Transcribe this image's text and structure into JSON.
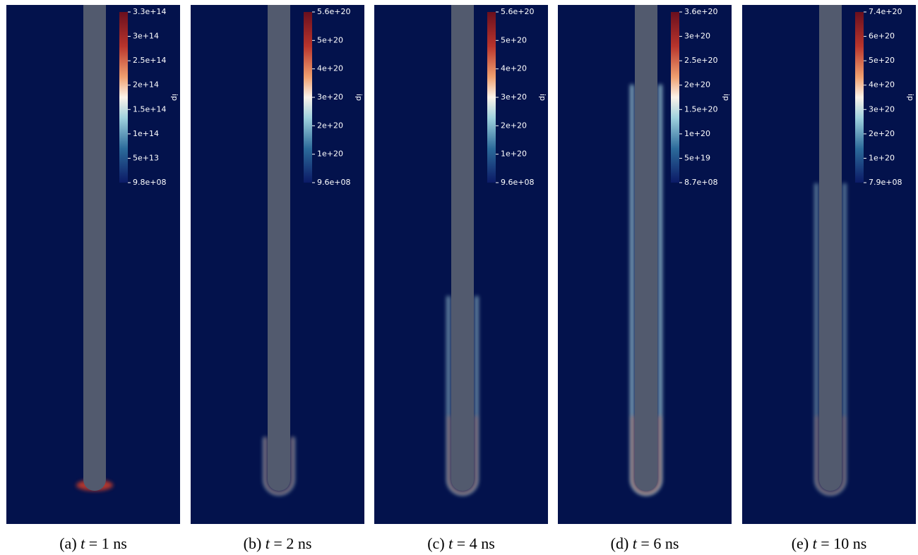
{
  "panels": [
    {
      "caption": {
        "tag": "(a)",
        "var": "t",
        "rest": "= 1 ns"
      },
      "colorbar": {
        "title": "ip",
        "ticks": [
          "3.3e+14",
          "3e+14",
          "2.5e+14",
          "2e+14",
          "1.5e+14",
          "1e+14",
          "5e+13",
          "9.8e+08"
        ]
      }
    },
    {
      "caption": {
        "tag": "(b)",
        "var": "t",
        "rest": "= 2 ns"
      },
      "colorbar": {
        "title": "ip",
        "ticks": [
          "5.6e+20",
          "5e+20",
          "4e+20",
          "3e+20",
          "2e+20",
          "1e+20",
          "9.6e+08"
        ]
      }
    },
    {
      "caption": {
        "tag": "(c)",
        "var": "t",
        "rest": "= 4 ns"
      },
      "colorbar": {
        "title": "ip",
        "ticks": [
          "5.6e+20",
          "5e+20",
          "4e+20",
          "3e+20",
          "2e+20",
          "1e+20",
          "9.6e+08"
        ]
      }
    },
    {
      "caption": {
        "tag": "(d)",
        "var": "t",
        "rest": "= 6 ns"
      },
      "colorbar": {
        "title": "ip",
        "ticks": [
          "3.6e+20",
          "3e+20",
          "2.5e+20",
          "2e+20",
          "1.5e+20",
          "1e+20",
          "5e+19",
          "8.7e+08"
        ]
      }
    },
    {
      "caption": {
        "tag": "(e)",
        "var": "t",
        "rest": "= 10 ns"
      },
      "colorbar": {
        "title": "ip",
        "ticks": [
          "7.4e+20",
          "6e+20",
          "5e+20",
          "4e+20",
          "3e+20",
          "2e+20",
          "1e+20",
          "7.9e+08"
        ]
      }
    }
  ]
}
